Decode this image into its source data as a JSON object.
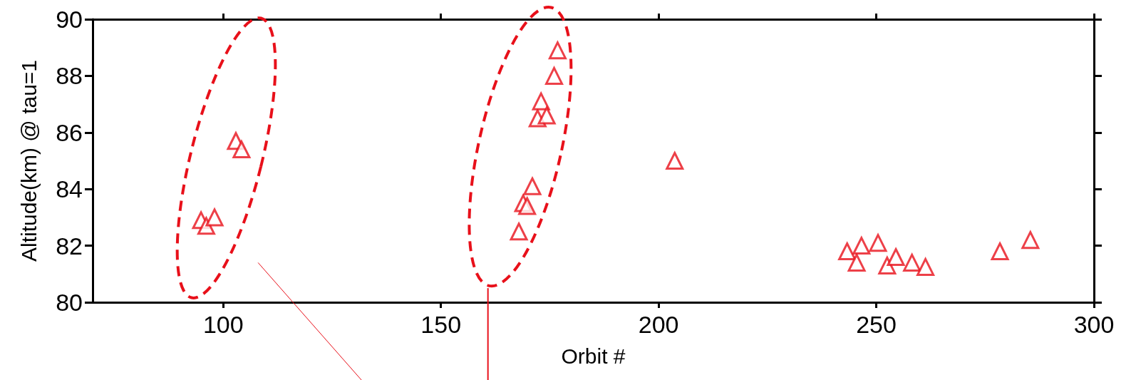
{
  "chart_data": {
    "type": "scatter",
    "xlabel": "Orbit #",
    "ylabel": "Altitude(km) @ tau=1",
    "xlim": [
      70,
      300
    ],
    "xticks": [
      100,
      150,
      200,
      250,
      300
    ],
    "ylim": [
      80,
      90
    ],
    "yticks": [
      80,
      82,
      84,
      86,
      88,
      90
    ],
    "grid": false,
    "marker": "triangle",
    "series": [
      {
        "color": "#e8101a",
        "x": [
          102.9,
          104.2,
          94.9,
          96.1,
          98.0,
          167.9,
          168.9,
          169.8,
          171.0,
          172.2,
          173.0,
          174.3,
          176.0,
          176.8,
          203.7,
          243.3,
          245.5,
          246.6,
          250.4,
          252.5,
          254.5,
          258.2,
          261.3,
          278.4,
          285.4
        ],
        "values": [
          85.7,
          85.4,
          82.9,
          82.7,
          83.0,
          82.5,
          83.5,
          83.4,
          84.1,
          86.5,
          87.1,
          86.6,
          88.0,
          88.9,
          85.0,
          81.8,
          81.4,
          82.0,
          82.1,
          81.3,
          81.6,
          81.4,
          81.25,
          81.8,
          82.2
        ]
      }
    ]
  }
}
